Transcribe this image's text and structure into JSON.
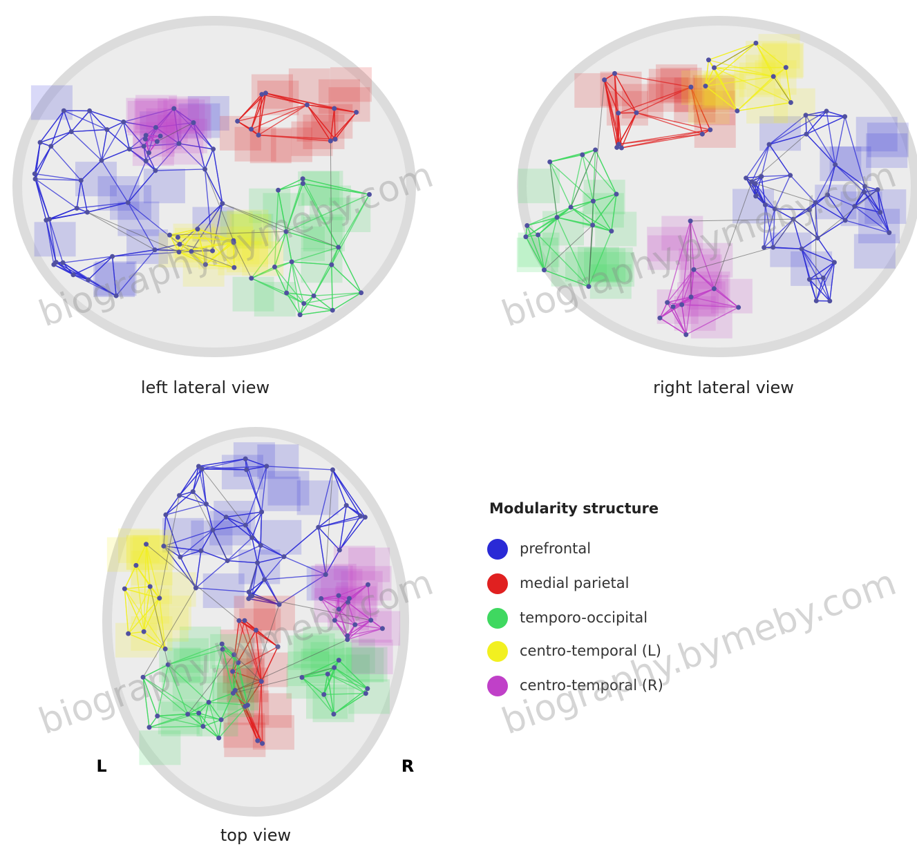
{
  "views": [
    {
      "label": "left lateral view"
    },
    {
      "label": "right lateral view"
    },
    {
      "label": "top view"
    }
  ],
  "orientation": {
    "left": "L",
    "right": "R"
  },
  "legend": {
    "title": "Modularity structure",
    "items": [
      {
        "label": "prefrontal",
        "color": "#2a2ad6"
      },
      {
        "label": "medial parietal",
        "color": "#e02020"
      },
      {
        "label": "temporo-occipital",
        "color": "#3fd860"
      },
      {
        "label": "centro-temporal (L)",
        "color": "#f2f020"
      },
      {
        "label": "centro-temporal (R)",
        "color": "#c040c8"
      }
    ]
  },
  "watermark": "biography.bymeby.com"
}
